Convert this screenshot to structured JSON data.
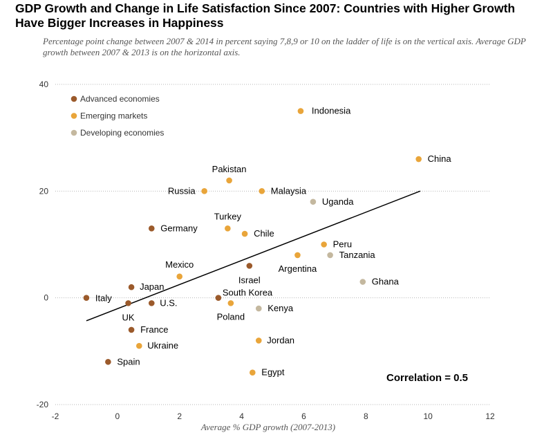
{
  "chart_data": {
    "type": "scatter",
    "title": "GDP Growth and Change in Life Satisfaction Since 2007: Countries with Higher Growth Have Bigger Increases in Happiness",
    "subtitle": "Percentage point change between 2007 & 2014 in percent saying 7,8,9 or 10 on the ladder of life is on the vertical axis. Average GDP growth between 2007 & 2013 is on the horizontal axis.",
    "xlabel": "Average % GDP growth (2007-2013)",
    "ylabel": "",
    "xlim": [
      -2,
      12
    ],
    "ylim": [
      -20,
      40
    ],
    "xticks": [
      -2,
      0,
      2,
      4,
      6,
      8,
      10,
      12
    ],
    "yticks": [
      -20,
      0,
      20,
      40
    ],
    "ygrid": true,
    "groups": [
      {
        "name": "Advanced economies",
        "color": "#9b5a2b"
      },
      {
        "name": "Emerging markets",
        "color": "#e9a53a"
      },
      {
        "name": "Developing economies",
        "color": "#c4b89f"
      }
    ],
    "legend_position": "top-left",
    "points": [
      {
        "label": "Indonesia",
        "group": 1,
        "x": 5.9,
        "y": 35
      },
      {
        "label": "China",
        "group": 1,
        "x": 9.7,
        "y": 26
      },
      {
        "label": "Pakistan",
        "group": 1,
        "x": 3.6,
        "y": 22
      },
      {
        "label": "Russia",
        "group": 1,
        "x": 2.8,
        "y": 20
      },
      {
        "label": "Malaysia",
        "group": 1,
        "x": 4.65,
        "y": 20
      },
      {
        "label": "Uganda",
        "group": 2,
        "x": 6.3,
        "y": 18
      },
      {
        "label": "Germany",
        "group": 0,
        "x": 1.1,
        "y": 13
      },
      {
        "label": "Turkey",
        "group": 1,
        "x": 3.55,
        "y": 13
      },
      {
        "label": "Chile",
        "group": 1,
        "x": 4.1,
        "y": 12
      },
      {
        "label": "Peru",
        "group": 1,
        "x": 6.65,
        "y": 10
      },
      {
        "label": "Tanzania",
        "group": 2,
        "x": 6.85,
        "y": 8
      },
      {
        "label": "Argentina",
        "group": 1,
        "x": 5.8,
        "y": 8
      },
      {
        "label": "Mexico",
        "group": 1,
        "x": 2.0,
        "y": 4
      },
      {
        "label": "Israel",
        "group": 0,
        "x": 4.25,
        "y": 6
      },
      {
        "label": "Japan",
        "group": 0,
        "x": 0.45,
        "y": 2
      },
      {
        "label": "Ghana",
        "group": 2,
        "x": 7.9,
        "y": 3
      },
      {
        "label": "Italy",
        "group": 0,
        "x": -1.0,
        "y": 0
      },
      {
        "label": "South Korea",
        "group": 0,
        "x": 3.25,
        "y": 0
      },
      {
        "label": "U.S.",
        "group": 0,
        "x": 1.1,
        "y": -1
      },
      {
        "label": "UK",
        "group": 0,
        "x": 0.35,
        "y": -1
      },
      {
        "label": "Poland",
        "group": 1,
        "x": 3.65,
        "y": -1
      },
      {
        "label": "Kenya",
        "group": 2,
        "x": 4.55,
        "y": -2
      },
      {
        "label": "France",
        "group": 0,
        "x": 0.45,
        "y": -6
      },
      {
        "label": "Ukraine",
        "group": 1,
        "x": 0.7,
        "y": -9
      },
      {
        "label": "Jordan",
        "group": 1,
        "x": 4.55,
        "y": -8
      },
      {
        "label": "Spain",
        "group": 0,
        "x": -0.3,
        "y": -12
      },
      {
        "label": "Egypt",
        "group": 1,
        "x": 4.35,
        "y": -14
      }
    ],
    "trendline": {
      "x1": -1.0,
      "y1": -4.3,
      "x2": 9.75,
      "y2": 20
    },
    "annotation": "Correlation = 0.5"
  }
}
